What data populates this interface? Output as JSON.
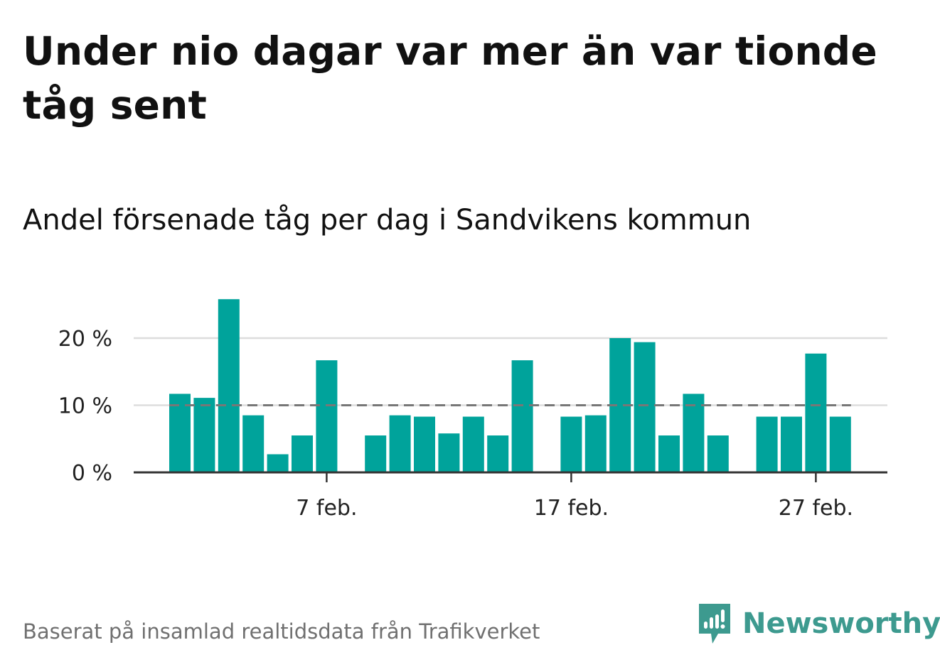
{
  "title": "Under nio dagar var mer än var tionde tåg sent",
  "subtitle": "Andel försenade tåg per dag i Sandvikens kommun",
  "source": "Baserat på insamlad realtidsdata från Trafikverket",
  "brand": {
    "name": "Newsworthy",
    "icon": "newsworthy-logo-icon",
    "color": "#3d9a8f"
  },
  "colors": {
    "bar": "#00a39b",
    "grid": "#dddddd",
    "axis": "#333333",
    "reference_line": "#777777"
  },
  "chart_data": {
    "type": "bar",
    "x": [
      "1 feb.",
      "2 feb.",
      "3 feb.",
      "4 feb.",
      "5 feb.",
      "6 feb.",
      "7 feb.",
      "8 feb.",
      "9 feb.",
      "10 feb.",
      "11 feb.",
      "12 feb.",
      "13 feb.",
      "14 feb.",
      "15 feb.",
      "16 feb.",
      "17 feb.",
      "18 feb.",
      "19 feb.",
      "20 feb.",
      "21 feb.",
      "22 feb.",
      "23 feb.",
      "24 feb.",
      "25 feb.",
      "26 feb.",
      "27 feb.",
      "28 feb."
    ],
    "values": [
      11.7,
      11.1,
      25.8,
      8.5,
      2.7,
      5.5,
      16.7,
      0,
      5.5,
      8.5,
      8.3,
      5.8,
      8.3,
      5.5,
      16.7,
      0,
      8.3,
      8.5,
      20.0,
      19.4,
      5.5,
      11.7,
      5.5,
      0,
      8.3,
      8.3,
      17.7,
      8.3
    ],
    "reference_line": 10,
    "yticks": [
      0,
      10,
      20
    ],
    "ytick_labels": [
      "0 %",
      "10 %",
      "20 %"
    ],
    "xticks": [
      "7 feb.",
      "17 feb.",
      "27 feb."
    ],
    "ylim": [
      0,
      27
    ],
    "grid": true
  }
}
